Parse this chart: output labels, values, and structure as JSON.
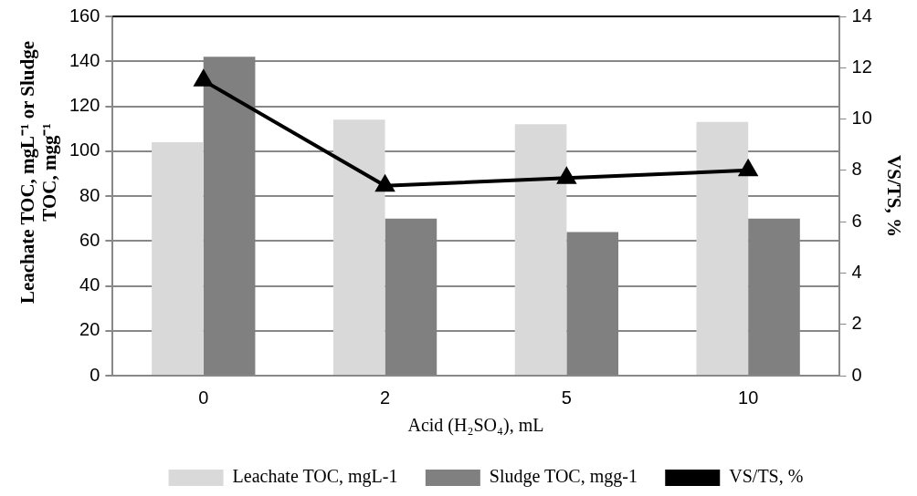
{
  "chart_data": {
    "type": "bar",
    "xlabel": "Acid (H₂SO₄), mL",
    "ylabel": "Leachate TOC, mgL⁻¹ or Sludge TOC, mgg⁻¹",
    "y2label": "VS/TS, %",
    "categories": [
      "0",
      "2",
      "5",
      "10"
    ],
    "series": [
      {
        "name": "Leachate TOC, mgL-1",
        "color": "#d9d9d9",
        "values": [
          104,
          114,
          112,
          113
        ]
      },
      {
        "name": "Sludge TOC, mgg-1",
        "color": "#808080",
        "values": [
          142,
          70,
          64,
          70
        ]
      },
      {
        "name": "VS/TS, %",
        "type": "line",
        "axis": "y2",
        "color": "#000000",
        "marker": "triangle",
        "values": [
          11.5,
          7.4,
          7.7,
          8.0
        ]
      }
    ],
    "ylim": [
      0,
      160
    ],
    "yticks": [
      0,
      20,
      40,
      60,
      80,
      100,
      120,
      140,
      160
    ],
    "y2lim": [
      0,
      14
    ],
    "y2ticks": [
      0,
      2,
      4,
      6,
      8,
      10,
      12,
      14
    ],
    "grid": "y",
    "legend": "bottom"
  }
}
